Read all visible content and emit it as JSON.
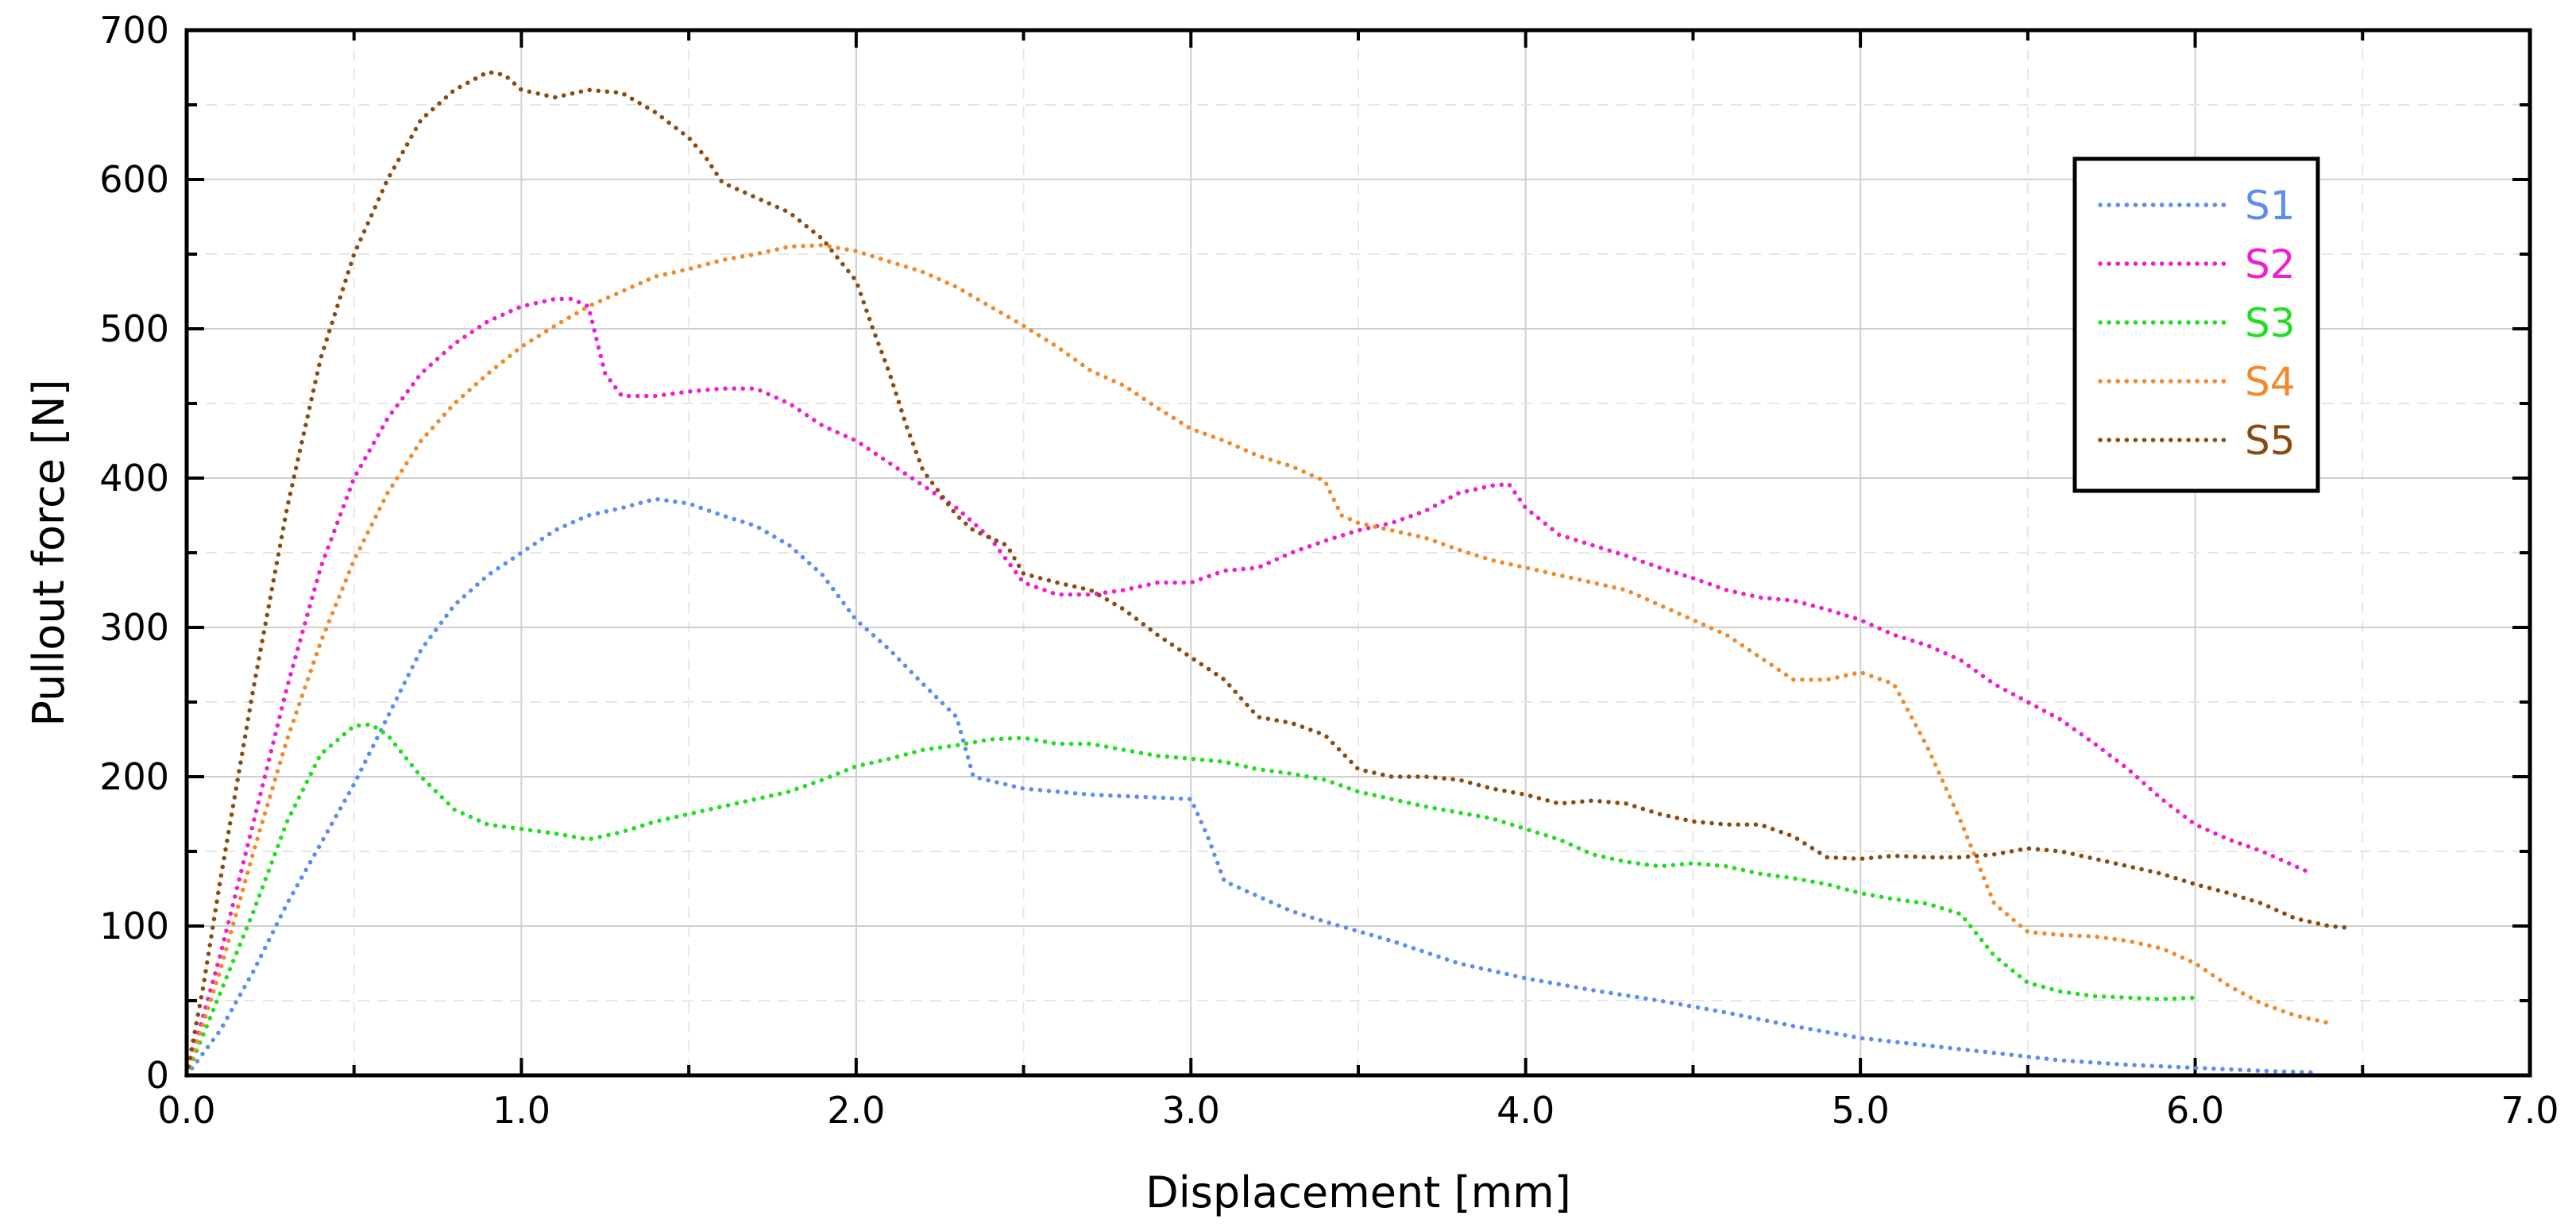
{
  "chart_data": {
    "type": "line",
    "title": "",
    "xlabel": "Displacement [mm]",
    "ylabel": "Pullout force [N]",
    "xlim": [
      0,
      7
    ],
    "ylim": [
      0,
      700
    ],
    "x_ticks": [
      "0.0",
      "1.0",
      "2.0",
      "3.0",
      "4.0",
      "5.0",
      "6.0",
      "7.0"
    ],
    "y_ticks": [
      "0",
      "100",
      "200",
      "300",
      "400",
      "500",
      "600",
      "700"
    ],
    "grid": true,
    "line_style": "dotted",
    "legend_position": "top-right",
    "series": [
      {
        "name": "S1",
        "color": "#5b8ef0",
        "points": [
          [
            0,
            0
          ],
          [
            0.1,
            30
          ],
          [
            0.2,
            70
          ],
          [
            0.3,
            115
          ],
          [
            0.4,
            155
          ],
          [
            0.5,
            195
          ],
          [
            0.6,
            240
          ],
          [
            0.7,
            285
          ],
          [
            0.8,
            315
          ],
          [
            0.9,
            335
          ],
          [
            1.0,
            350
          ],
          [
            1.1,
            365
          ],
          [
            1.2,
            375
          ],
          [
            1.3,
            380
          ],
          [
            1.4,
            386
          ],
          [
            1.5,
            383
          ],
          [
            1.6,
            375
          ],
          [
            1.7,
            368
          ],
          [
            1.8,
            355
          ],
          [
            1.9,
            335
          ],
          [
            2.0,
            305
          ],
          [
            2.1,
            285
          ],
          [
            2.2,
            262
          ],
          [
            2.3,
            240
          ],
          [
            2.35,
            200
          ],
          [
            2.5,
            192
          ],
          [
            2.7,
            188
          ],
          [
            2.9,
            186
          ],
          [
            3.0,
            185
          ],
          [
            3.05,
            160
          ],
          [
            3.1,
            130
          ],
          [
            3.2,
            120
          ],
          [
            3.3,
            110
          ],
          [
            3.4,
            103
          ],
          [
            3.6,
            90
          ],
          [
            3.8,
            75
          ],
          [
            4.0,
            65
          ],
          [
            4.2,
            57
          ],
          [
            4.4,
            50
          ],
          [
            4.6,
            42
          ],
          [
            4.8,
            33
          ],
          [
            5.0,
            25
          ],
          [
            5.2,
            20
          ],
          [
            5.4,
            15
          ],
          [
            5.6,
            10
          ],
          [
            5.8,
            7
          ],
          [
            6.0,
            5
          ],
          [
            6.2,
            3
          ],
          [
            6.35,
            2
          ]
        ]
      },
      {
        "name": "S2",
        "color": "#ee1fd0",
        "points": [
          [
            0,
            0
          ],
          [
            0.1,
            80
          ],
          [
            0.2,
            170
          ],
          [
            0.3,
            260
          ],
          [
            0.4,
            340
          ],
          [
            0.5,
            400
          ],
          [
            0.6,
            440
          ],
          [
            0.7,
            470
          ],
          [
            0.8,
            490
          ],
          [
            0.9,
            505
          ],
          [
            1.0,
            515
          ],
          [
            1.1,
            520
          ],
          [
            1.15,
            520
          ],
          [
            1.2,
            515
          ],
          [
            1.25,
            470
          ],
          [
            1.3,
            455
          ],
          [
            1.4,
            455
          ],
          [
            1.5,
            458
          ],
          [
            1.6,
            460
          ],
          [
            1.7,
            460
          ],
          [
            1.8,
            450
          ],
          [
            1.9,
            435
          ],
          [
            2.0,
            425
          ],
          [
            2.1,
            410
          ],
          [
            2.2,
            395
          ],
          [
            2.3,
            380
          ],
          [
            2.4,
            360
          ],
          [
            2.5,
            330
          ],
          [
            2.6,
            322
          ],
          [
            2.7,
            322
          ],
          [
            2.8,
            325
          ],
          [
            2.9,
            330
          ],
          [
            3.0,
            330
          ],
          [
            3.1,
            338
          ],
          [
            3.2,
            340
          ],
          [
            3.3,
            350
          ],
          [
            3.4,
            358
          ],
          [
            3.5,
            365
          ],
          [
            3.6,
            370
          ],
          [
            3.7,
            378
          ],
          [
            3.8,
            390
          ],
          [
            3.9,
            395
          ],
          [
            3.95,
            396
          ],
          [
            4.0,
            380
          ],
          [
            4.1,
            362
          ],
          [
            4.2,
            355
          ],
          [
            4.3,
            348
          ],
          [
            4.4,
            340
          ],
          [
            4.5,
            333
          ],
          [
            4.6,
            325
          ],
          [
            4.7,
            320
          ],
          [
            4.8,
            318
          ],
          [
            4.9,
            312
          ],
          [
            5.0,
            305
          ],
          [
            5.1,
            295
          ],
          [
            5.2,
            288
          ],
          [
            5.3,
            278
          ],
          [
            5.4,
            262
          ],
          [
            5.5,
            250
          ],
          [
            5.6,
            238
          ],
          [
            5.7,
            222
          ],
          [
            5.8,
            205
          ],
          [
            5.9,
            185
          ],
          [
            6.0,
            168
          ],
          [
            6.1,
            158
          ],
          [
            6.2,
            150
          ],
          [
            6.3,
            140
          ],
          [
            6.35,
            135
          ]
        ]
      },
      {
        "name": "S3",
        "color": "#22dd22",
        "points": [
          [
            0,
            0
          ],
          [
            0.1,
            55
          ],
          [
            0.2,
            110
          ],
          [
            0.3,
            170
          ],
          [
            0.4,
            215
          ],
          [
            0.5,
            234
          ],
          [
            0.55,
            235
          ],
          [
            0.6,
            228
          ],
          [
            0.7,
            200
          ],
          [
            0.8,
            178
          ],
          [
            0.9,
            168
          ],
          [
            1.0,
            165
          ],
          [
            1.1,
            162
          ],
          [
            1.2,
            158
          ],
          [
            1.3,
            163
          ],
          [
            1.4,
            170
          ],
          [
            1.5,
            175
          ],
          [
            1.6,
            180
          ],
          [
            1.7,
            185
          ],
          [
            1.8,
            190
          ],
          [
            1.9,
            198
          ],
          [
            2.0,
            207
          ],
          [
            2.1,
            212
          ],
          [
            2.2,
            218
          ],
          [
            2.3,
            221
          ],
          [
            2.4,
            225
          ],
          [
            2.5,
            226
          ],
          [
            2.6,
            222
          ],
          [
            2.7,
            222
          ],
          [
            2.8,
            218
          ],
          [
            2.9,
            214
          ],
          [
            3.0,
            212
          ],
          [
            3.1,
            210
          ],
          [
            3.2,
            205
          ],
          [
            3.3,
            202
          ],
          [
            3.4,
            198
          ],
          [
            3.5,
            190
          ],
          [
            3.6,
            185
          ],
          [
            3.7,
            180
          ],
          [
            3.8,
            176
          ],
          [
            3.9,
            172
          ],
          [
            4.0,
            165
          ],
          [
            4.1,
            158
          ],
          [
            4.2,
            148
          ],
          [
            4.3,
            143
          ],
          [
            4.4,
            140
          ],
          [
            4.5,
            142
          ],
          [
            4.6,
            140
          ],
          [
            4.7,
            135
          ],
          [
            4.8,
            132
          ],
          [
            4.9,
            128
          ],
          [
            5.0,
            122
          ],
          [
            5.1,
            118
          ],
          [
            5.2,
            115
          ],
          [
            5.3,
            108
          ],
          [
            5.4,
            80
          ],
          [
            5.5,
            62
          ],
          [
            5.6,
            56
          ],
          [
            5.7,
            53
          ],
          [
            5.8,
            52
          ],
          [
            5.9,
            51
          ],
          [
            6.0,
            52
          ]
        ]
      },
      {
        "name": "S4",
        "color": "#f08a2c",
        "points": [
          [
            0,
            0
          ],
          [
            0.1,
            70
          ],
          [
            0.2,
            150
          ],
          [
            0.3,
            225
          ],
          [
            0.4,
            290
          ],
          [
            0.5,
            345
          ],
          [
            0.6,
            390
          ],
          [
            0.7,
            425
          ],
          [
            0.8,
            450
          ],
          [
            0.9,
            470
          ],
          [
            1.0,
            488
          ],
          [
            1.1,
            502
          ],
          [
            1.2,
            515
          ],
          [
            1.3,
            525
          ],
          [
            1.4,
            535
          ],
          [
            1.5,
            540
          ],
          [
            1.6,
            546
          ],
          [
            1.7,
            550
          ],
          [
            1.8,
            555
          ],
          [
            1.9,
            556
          ],
          [
            2.0,
            552
          ],
          [
            2.1,
            545
          ],
          [
            2.2,
            538
          ],
          [
            2.3,
            528
          ],
          [
            2.4,
            515
          ],
          [
            2.5,
            502
          ],
          [
            2.6,
            488
          ],
          [
            2.7,
            472
          ],
          [
            2.8,
            462
          ],
          [
            2.9,
            447
          ],
          [
            3.0,
            433
          ],
          [
            3.1,
            425
          ],
          [
            3.2,
            415
          ],
          [
            3.3,
            408
          ],
          [
            3.4,
            398
          ],
          [
            3.45,
            375
          ],
          [
            3.5,
            370
          ],
          [
            3.6,
            365
          ],
          [
            3.7,
            360
          ],
          [
            3.8,
            352
          ],
          [
            3.9,
            345
          ],
          [
            4.0,
            340
          ],
          [
            4.1,
            335
          ],
          [
            4.2,
            330
          ],
          [
            4.3,
            325
          ],
          [
            4.4,
            315
          ],
          [
            4.5,
            305
          ],
          [
            4.6,
            295
          ],
          [
            4.7,
            280
          ],
          [
            4.8,
            265
          ],
          [
            4.9,
            265
          ],
          [
            5.0,
            270
          ],
          [
            5.1,
            262
          ],
          [
            5.2,
            220
          ],
          [
            5.3,
            170
          ],
          [
            5.4,
            115
          ],
          [
            5.5,
            96
          ],
          [
            5.6,
            94
          ],
          [
            5.7,
            93
          ],
          [
            5.8,
            90
          ],
          [
            5.9,
            85
          ],
          [
            6.0,
            75
          ],
          [
            6.1,
            60
          ],
          [
            6.2,
            48
          ],
          [
            6.3,
            40
          ],
          [
            6.4,
            35
          ]
        ]
      },
      {
        "name": "S5",
        "color": "#8b4a10",
        "points": [
          [
            0,
            0
          ],
          [
            0.05,
            60
          ],
          [
            0.1,
            130
          ],
          [
            0.2,
            260
          ],
          [
            0.3,
            380
          ],
          [
            0.4,
            480
          ],
          [
            0.5,
            550
          ],
          [
            0.6,
            600
          ],
          [
            0.7,
            640
          ],
          [
            0.8,
            660
          ],
          [
            0.9,
            672
          ],
          [
            0.95,
            670
          ],
          [
            1.0,
            660
          ],
          [
            1.1,
            655
          ],
          [
            1.2,
            660
          ],
          [
            1.3,
            658
          ],
          [
            1.4,
            645
          ],
          [
            1.5,
            628
          ],
          [
            1.55,
            615
          ],
          [
            1.6,
            598
          ],
          [
            1.7,
            588
          ],
          [
            1.8,
            578
          ],
          [
            1.9,
            560
          ],
          [
            2.0,
            532
          ],
          [
            2.05,
            500
          ],
          [
            2.1,
            470
          ],
          [
            2.15,
            435
          ],
          [
            2.2,
            405
          ],
          [
            2.3,
            375
          ],
          [
            2.35,
            365
          ],
          [
            2.45,
            355
          ],
          [
            2.5,
            336
          ],
          [
            2.6,
            330
          ],
          [
            2.7,
            325
          ],
          [
            2.8,
            312
          ],
          [
            2.9,
            295
          ],
          [
            3.0,
            280
          ],
          [
            3.1,
            265
          ],
          [
            3.2,
            240
          ],
          [
            3.3,
            236
          ],
          [
            3.4,
            228
          ],
          [
            3.5,
            205
          ],
          [
            3.6,
            200
          ],
          [
            3.7,
            200
          ],
          [
            3.8,
            198
          ],
          [
            3.9,
            192
          ],
          [
            4.0,
            188
          ],
          [
            4.1,
            182
          ],
          [
            4.2,
            184
          ],
          [
            4.3,
            182
          ],
          [
            4.4,
            175
          ],
          [
            4.5,
            170
          ],
          [
            4.6,
            168
          ],
          [
            4.7,
            168
          ],
          [
            4.8,
            160
          ],
          [
            4.9,
            146
          ],
          [
            5.0,
            145
          ],
          [
            5.1,
            147
          ],
          [
            5.2,
            146
          ],
          [
            5.3,
            146
          ],
          [
            5.4,
            148
          ],
          [
            5.5,
            152
          ],
          [
            5.6,
            150
          ],
          [
            5.7,
            145
          ],
          [
            5.8,
            140
          ],
          [
            5.9,
            135
          ],
          [
            6.0,
            128
          ],
          [
            6.1,
            122
          ],
          [
            6.2,
            115
          ],
          [
            6.3,
            105
          ],
          [
            6.4,
            100
          ],
          [
            6.45,
            99
          ]
        ]
      }
    ]
  }
}
